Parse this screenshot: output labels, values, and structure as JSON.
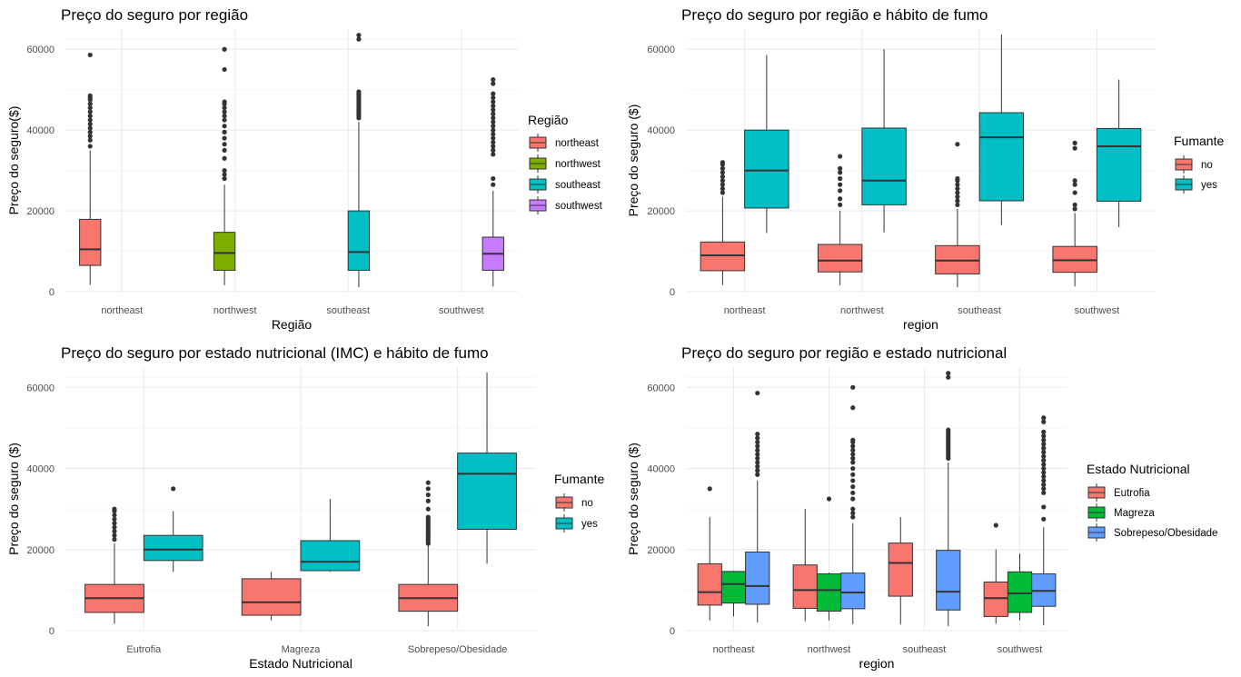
{
  "chart_data": [
    {
      "type": "boxplot",
      "title": "Preço do seguro por região",
      "xlabel": "Região",
      "ylabel": "Preço do seguro($)",
      "ylim": [
        0,
        65000
      ],
      "yticks": [
        0,
        20000,
        40000,
        60000
      ],
      "categories": [
        "northeast",
        "northwest",
        "southeast",
        "southwest"
      ],
      "legend": {
        "title": "Região",
        "placement": "right"
      },
      "series": [
        {
          "name": "northeast",
          "color": "#F8766D",
          "boxes": [
            {
              "cat": 0,
              "min": 1700,
              "q1": 6500,
              "median": 10500,
              "q3": 17900,
              "max": 35000,
              "outliers": [
                36000,
                37500,
                38500,
                39500,
                40500,
                41500,
                42500,
                43500,
                44500,
                45500,
                46500,
                47500,
                48000,
                48500,
                58600
              ]
            }
          ]
        },
        {
          "name": "northwest",
          "color": "#7CAE00",
          "boxes": [
            {
              "cat": 1,
              "min": 1600,
              "q1": 5300,
              "median": 9600,
              "q3": 14700,
              "max": 26500,
              "outliers": [
                28000,
                29000,
                30000,
                33000,
                35000,
                36500,
                38000,
                39500,
                41000,
                42500,
                43500,
                44500,
                45500,
                46500,
                47000,
                55000,
                60000
              ]
            }
          ]
        },
        {
          "name": "southeast",
          "color": "#00BFC4",
          "boxes": [
            {
              "cat": 2,
              "min": 1100,
              "q1": 5300,
              "median": 9800,
              "q3": 20000,
              "max": 42000,
              "outliers": [
                43000,
                43500,
                44000,
                44500,
                45000,
                45500,
                46000,
                46500,
                47000,
                47500,
                48000,
                48500,
                49000,
                49500,
                62500,
                63500
              ]
            }
          ]
        },
        {
          "name": "southwest",
          "color": "#C77CFF",
          "boxes": [
            {
              "cat": 3,
              "min": 1300,
              "q1": 5300,
              "median": 9400,
              "q3": 13500,
              "max": 25000,
              "outliers": [
                26500,
                28000,
                34000,
                35000,
                36000,
                37000,
                38000,
                39000,
                40000,
                41000,
                42000,
                43000,
                44000,
                45000,
                46000,
                47000,
                48000,
                49000,
                51500,
                52500
              ]
            }
          ]
        }
      ]
    },
    {
      "type": "boxplot",
      "title": "Preço do seguro por região e hábito de fumo",
      "xlabel": "region",
      "ylabel": "Preço do seguro ($)",
      "ylim": [
        0,
        65000
      ],
      "yticks": [
        0,
        20000,
        40000,
        60000
      ],
      "categories": [
        "northeast",
        "northwest",
        "southeast",
        "southwest"
      ],
      "legend": {
        "title": "Fumante",
        "placement": "right"
      },
      "series": [
        {
          "name": "no",
          "color": "#F8766D",
          "boxes": [
            {
              "cat": 0,
              "min": 1700,
              "q1": 5200,
              "median": 9000,
              "q3": 12300,
              "max": 23500,
              "outliers": [
                24500,
                25500,
                26500,
                27500,
                28500,
                29500,
                30500,
                31500,
                32000
              ]
            },
            {
              "cat": 1,
              "min": 1600,
              "q1": 4900,
              "median": 7700,
              "q3": 11700,
              "max": 20000,
              "outliers": [
                21500,
                23000,
                25000,
                26500,
                28000,
                29500,
                30500,
                33500
              ]
            },
            {
              "cat": 2,
              "min": 1100,
              "q1": 4400,
              "median": 7700,
              "q3": 11400,
              "max": 20500,
              "outliers": [
                21500,
                22500,
                23500,
                24500,
                25500,
                26500,
                27500,
                28000,
                36500
              ]
            },
            {
              "cat": 3,
              "min": 1300,
              "q1": 4800,
              "median": 7800,
              "q3": 11200,
              "max": 19500,
              "outliers": [
                20500,
                21500,
                24500,
                26500,
                27500,
                35500,
                36800
              ]
            }
          ]
        },
        {
          "name": "yes",
          "color": "#00BFC4",
          "boxes": [
            {
              "cat": 0,
              "min": 14500,
              "q1": 20700,
              "median": 30000,
              "q3": 40000,
              "max": 58600,
              "outliers": []
            },
            {
              "cat": 1,
              "min": 14700,
              "q1": 21500,
              "median": 27500,
              "q3": 40500,
              "max": 60000,
              "outliers": []
            },
            {
              "cat": 2,
              "min": 16500,
              "q1": 22500,
              "median": 38200,
              "q3": 44300,
              "max": 63700,
              "outliers": []
            },
            {
              "cat": 3,
              "min": 16000,
              "q1": 22400,
              "median": 36000,
              "q3": 40400,
              "max": 52500,
              "outliers": []
            }
          ]
        }
      ]
    },
    {
      "type": "boxplot",
      "title": "Preço do seguro por estado nutricional (IMC) e hábito de fumo",
      "xlabel": "Estado Nutricional",
      "ylabel": "Preço do seguro ($)",
      "ylim": [
        0,
        65000
      ],
      "yticks": [
        0,
        20000,
        40000,
        60000
      ],
      "categories": [
        "Eutrofia",
        "Magreza",
        "Sobrepeso/Obesidade"
      ],
      "legend": {
        "title": "Fumante",
        "placement": "right"
      },
      "series": [
        {
          "name": "no",
          "color": "#F8766D",
          "boxes": [
            {
              "cat": 0,
              "min": 1700,
              "q1": 4500,
              "median": 8000,
              "q3": 11400,
              "max": 21500,
              "outliers": [
                22500,
                23500,
                24500,
                25500,
                26500,
                27500,
                28500,
                29500,
                30000
              ]
            },
            {
              "cat": 1,
              "min": 2500,
              "q1": 3800,
              "median": 7000,
              "q3": 12800,
              "max": 14500,
              "outliers": []
            },
            {
              "cat": 2,
              "min": 1100,
              "q1": 4800,
              "median": 8000,
              "q3": 11400,
              "max": 21000,
              "outliers": [
                21500,
                22000,
                22500,
                23000,
                23500,
                24000,
                24500,
                25000,
                25500,
                26000,
                26500,
                27000,
                27500,
                28000,
                30000,
                32000,
                33500,
                35000,
                36500
              ]
            }
          ]
        },
        {
          "name": "yes",
          "color": "#00BFC4",
          "boxes": [
            {
              "cat": 0,
              "min": 14500,
              "q1": 17300,
              "median": 20000,
              "q3": 23500,
              "max": 29500,
              "outliers": [
                35000
              ]
            },
            {
              "cat": 1,
              "min": 14500,
              "q1": 14800,
              "median": 17000,
              "q3": 22200,
              "max": 32500,
              "outliers": []
            },
            {
              "cat": 2,
              "min": 16500,
              "q1": 25000,
              "median": 38700,
              "q3": 43800,
              "max": 63700,
              "outliers": []
            }
          ]
        }
      ]
    },
    {
      "type": "boxplot",
      "title": "Preço do seguro por região e estado nutricional",
      "xlabel": "region",
      "ylabel": "Preço do seguro ($)",
      "ylim": [
        0,
        65000
      ],
      "yticks": [
        0,
        20000,
        40000,
        60000
      ],
      "categories": [
        "northeast",
        "northwest",
        "southeast",
        "southwest"
      ],
      "legend": {
        "title": "Estado Nutricional",
        "placement": "right"
      },
      "series": [
        {
          "name": "Eutrofia",
          "color": "#F8766D",
          "boxes": [
            {
              "cat": 0,
              "min": 2500,
              "q1": 6300,
              "median": 9500,
              "q3": 16500,
              "max": 28000,
              "outliers": [
                35000
              ]
            },
            {
              "cat": 1,
              "min": 2300,
              "q1": 5500,
              "median": 10000,
              "q3": 16200,
              "max": 30000,
              "outliers": []
            },
            {
              "cat": 2,
              "min": 1500,
              "q1": 8500,
              "median": 16700,
              "q3": 21600,
              "max": 28000,
              "outliers": []
            },
            {
              "cat": 3,
              "min": 1700,
              "q1": 3500,
              "median": 8000,
              "q3": 12000,
              "max": 20000,
              "outliers": [
                26000
              ]
            }
          ]
        },
        {
          "name": "Magreza",
          "color": "#00BA38",
          "boxes": [
            {
              "cat": 0,
              "min": 3500,
              "q1": 6800,
              "median": 11500,
              "q3": 14600,
              "max": 14800,
              "outliers": []
            },
            {
              "cat": 1,
              "min": 2500,
              "q1": 4800,
              "median": 10000,
              "q3": 14000,
              "max": 14300,
              "outliers": [
                32500
              ]
            },
            {
              "cat": 3,
              "min": 2500,
              "q1": 4500,
              "median": 9200,
              "q3": 14500,
              "max": 19000,
              "outliers": []
            }
          ]
        },
        {
          "name": "Sobrepeso/Obesidade",
          "color": "#619CFF",
          "boxes": [
            {
              "cat": 0,
              "min": 2000,
              "q1": 6500,
              "median": 11000,
              "q3": 19400,
              "max": 37000,
              "outliers": [
                38500,
                39500,
                40500,
                41500,
                42500,
                43500,
                44500,
                45500,
                46500,
                47500,
                48500,
                58600
              ]
            },
            {
              "cat": 1,
              "min": 1600,
              "q1": 5400,
              "median": 9400,
              "q3": 14200,
              "max": 26500,
              "outliers": [
                28000,
                29000,
                30000,
                32500,
                34000,
                35500,
                37000,
                38500,
                40000,
                41500,
                42500,
                43500,
                44500,
                45500,
                46500,
                47000,
                55000,
                60000
              ]
            },
            {
              "cat": 2,
              "min": 1100,
              "q1": 5100,
              "median": 9600,
              "q3": 19800,
              "max": 41500,
              "outliers": [
                42500,
                43000,
                43500,
                44000,
                44500,
                45000,
                45500,
                46000,
                46500,
                47000,
                47500,
                48000,
                48500,
                49000,
                49500,
                62500,
                63500
              ]
            },
            {
              "cat": 3,
              "min": 1300,
              "q1": 6000,
              "median": 9800,
              "q3": 14000,
              "max": 25500,
              "outliers": [
                27500,
                30500,
                34000,
                35000,
                36000,
                37000,
                38000,
                39000,
                40000,
                41000,
                42000,
                43000,
                44000,
                45000,
                46000,
                47000,
                48000,
                49000,
                51500,
                52500
              ]
            }
          ]
        }
      ]
    }
  ]
}
